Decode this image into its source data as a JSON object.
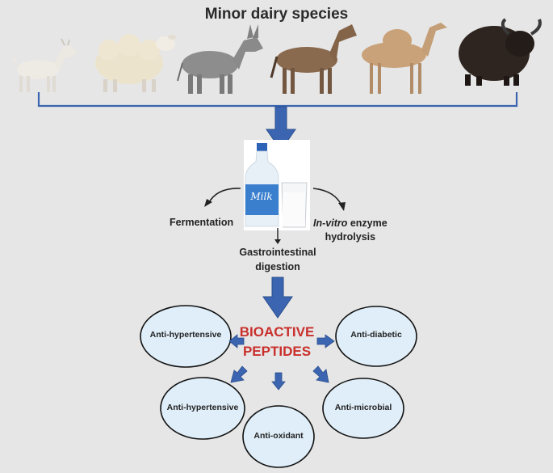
{
  "title": "Minor dairy species",
  "animals": [
    {
      "icon": "goat-icon"
    },
    {
      "icon": "sheep-icon"
    },
    {
      "icon": "donkey-icon"
    },
    {
      "icon": "horse-icon"
    },
    {
      "icon": "camel-icon"
    },
    {
      "icon": "yak-icon"
    }
  ],
  "milk": {
    "bottle_label": "Milk",
    "icon": "milk-bottle-icon"
  },
  "process": {
    "fermentation": "Fermentation",
    "in_vitro_italic": "In-vitro",
    "in_vitro_rest": " enzyme",
    "hydrolysis": "hydrolysis",
    "gastrointestinal": "Gastrointestinal digestion"
  },
  "center": "BIOACTIVE PEPTIDES",
  "effects": [
    "Anti-hypertensive",
    "Anti-diabetic",
    "Anti-hypertensive",
    "Anti-oxidant",
    "Anti-microbial"
  ],
  "colors": {
    "arrow": "#3b65b0",
    "peptides": "#c9302c",
    "ellipse_fill": "#dfeef8",
    "background": "#e6e6e6"
  }
}
